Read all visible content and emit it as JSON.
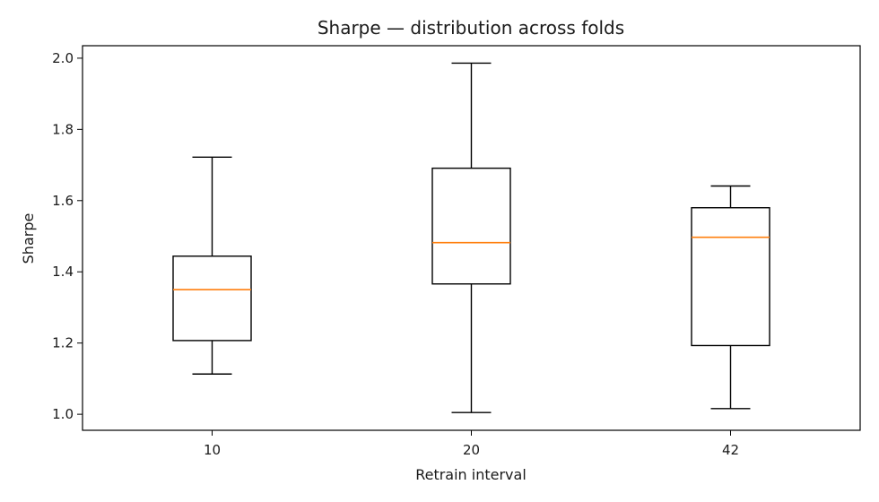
{
  "chart_data": {
    "type": "box",
    "title": "Sharpe — distribution across folds",
    "xlabel": "Retrain interval",
    "ylabel": "Sharpe",
    "ylim": [
      0.955,
      2.035
    ],
    "yticks": [
      "1.0",
      "1.2",
      "1.4",
      "1.6",
      "1.8",
      "2.0"
    ],
    "categories": [
      "10",
      "20",
      "42"
    ],
    "boxes": [
      {
        "category": "10",
        "whisker_low": 1.113,
        "q1": 1.207,
        "median": 1.35,
        "q3": 1.444,
        "whisker_high": 1.722
      },
      {
        "category": "20",
        "whisker_low": 1.005,
        "q1": 1.366,
        "median": 1.482,
        "q3": 1.691,
        "whisker_high": 1.986
      },
      {
        "category": "42",
        "whisker_low": 1.016,
        "q1": 1.193,
        "median": 1.497,
        "q3": 1.58,
        "whisker_high": 1.641
      }
    ],
    "grid": false,
    "colors": {
      "box": "#000000",
      "median": "#ff7f0e"
    }
  }
}
